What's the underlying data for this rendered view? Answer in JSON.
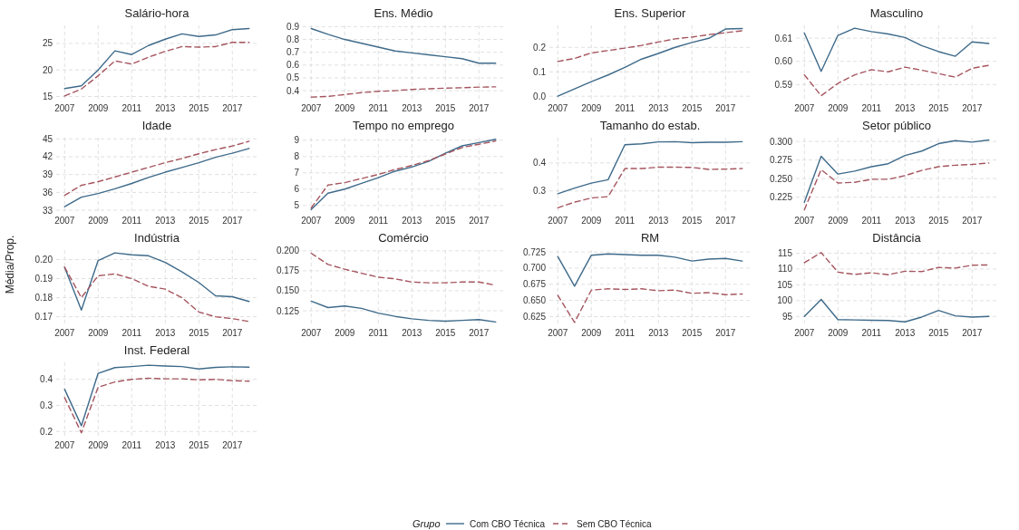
{
  "chart_data": [
    {
      "type": "line",
      "title": "Salário-hora",
      "legend": "bottom",
      "legend_title": "Grupo",
      "grid": true,
      "xlim": [
        2006.5,
        2018.5
      ],
      "xticks": [
        2007,
        2009,
        2011,
        2013,
        2015,
        2017
      ],
      "ylim": [
        14.4,
        28.4
      ],
      "yticks": [
        15,
        20,
        25
      ],
      "x": [
        2007,
        2008,
        2009,
        2010,
        2011,
        2012,
        2013,
        2014,
        2015,
        2016,
        2017,
        2018
      ],
      "series": [
        {
          "name": "Com CBO Técnica",
          "color": "#3e6a8a",
          "line_style": "solid",
          "values": [
            16.5,
            17.0,
            20.0,
            23.6,
            22.9,
            24.6,
            25.8,
            26.8,
            26.3,
            26.6,
            27.6,
            27.8
          ]
        },
        {
          "name": "Sem CBO Técnica",
          "color": "#a5555f",
          "line_style": "dashed",
          "values": [
            15.1,
            16.4,
            18.9,
            21.7,
            21.1,
            22.4,
            23.5,
            24.4,
            24.3,
            24.4,
            25.2,
            25.2
          ]
        }
      ]
    },
    {
      "type": "line",
      "title": "Ens. Médio",
      "grid": true,
      "xlim": [
        2006.5,
        2018.5
      ],
      "xticks": [
        2007,
        2009,
        2011,
        2013,
        2015,
        2017
      ],
      "ylim": [
        0.33,
        0.91
      ],
      "yticks": [
        0.4,
        0.5,
        0.6,
        0.7,
        0.8,
        0.9
      ],
      "x": [
        2007,
        2008,
        2009,
        2010,
        2011,
        2012,
        2013,
        2014,
        2015,
        2016,
        2017,
        2018
      ],
      "series": [
        {
          "color": "#3e6a8a",
          "line_style": "solid",
          "values": [
            0.885,
            0.84,
            0.8,
            0.77,
            0.74,
            0.71,
            0.695,
            0.68,
            0.665,
            0.65,
            0.615,
            0.615
          ]
        },
        {
          "color": "#a5555f",
          "line_style": "dashed",
          "values": [
            0.35,
            0.355,
            0.37,
            0.385,
            0.395,
            0.4,
            0.41,
            0.415,
            0.42,
            0.423,
            0.428,
            0.43
          ]
        }
      ]
    },
    {
      "type": "line",
      "title": "Ens. Superior",
      "grid": true,
      "xlim": [
        2006.5,
        2018.5
      ],
      "xticks": [
        2007,
        2009,
        2011,
        2013,
        2015,
        2017
      ],
      "ylim": [
        -0.014,
        0.29
      ],
      "yticks": [
        {
          "value": 0,
          "label": "0.0"
        },
        0.1,
        0.2
      ],
      "x": [
        2007,
        2008,
        2009,
        2010,
        2011,
        2012,
        2013,
        2014,
        2015,
        2016,
        2017,
        2018
      ],
      "series": [
        {
          "color": "#3e6a8a",
          "line_style": "solid",
          "values": [
            0.0,
            0.03,
            0.06,
            0.087,
            0.118,
            0.152,
            0.175,
            0.2,
            0.22,
            0.237,
            0.275,
            0.277
          ]
        },
        {
          "color": "#a5555f",
          "line_style": "dashed",
          "values": [
            0.142,
            0.155,
            0.177,
            0.187,
            0.197,
            0.208,
            0.222,
            0.235,
            0.242,
            0.252,
            0.26,
            0.268
          ]
        }
      ]
    },
    {
      "type": "line",
      "title": "Masculino",
      "grid": true,
      "xlim": [
        2006.5,
        2018.5
      ],
      "xticks": [
        2007,
        2009,
        2011,
        2013,
        2015,
        2017
      ],
      "ylim": [
        0.5835,
        0.6155
      ],
      "yticks": [
        0.59,
        {
          "value": 0.6,
          "label": "0.60"
        },
        0.61
      ],
      "x": [
        2007,
        2008,
        2009,
        2010,
        2011,
        2012,
        2013,
        2014,
        2015,
        2016,
        2017,
        2018
      ],
      "series": [
        {
          "color": "#3e6a8a",
          "line_style": "solid",
          "values": [
            0.6122,
            0.5957,
            0.6112,
            0.6143,
            0.6128,
            0.6118,
            0.6103,
            0.6068,
            0.6042,
            0.6022,
            0.6084,
            0.6077
          ]
        },
        {
          "color": "#a5555f",
          "line_style": "dashed",
          "values": [
            0.5942,
            0.5852,
            0.5905,
            0.5942,
            0.5964,
            0.5955,
            0.5975,
            0.5962,
            0.5947,
            0.5932,
            0.597,
            0.5983
          ]
        }
      ]
    },
    {
      "type": "line",
      "title": "Idade",
      "grid": true,
      "xlim": [
        2006.5,
        2018.5
      ],
      "xticks": [
        2007,
        2009,
        2011,
        2013,
        2015,
        2017
      ],
      "ylim": [
        32.7,
        45.2
      ],
      "yticks": [
        33,
        36,
        39,
        42,
        45
      ],
      "x": [
        2007,
        2008,
        2009,
        2010,
        2011,
        2012,
        2013,
        2014,
        2015,
        2016,
        2017,
        2018
      ],
      "series": [
        {
          "color": "#3e6a8a",
          "line_style": "solid",
          "values": [
            33.6,
            35.2,
            35.8,
            36.6,
            37.5,
            38.5,
            39.4,
            40.2,
            41.0,
            41.9,
            42.6,
            43.4
          ]
        },
        {
          "color": "#a5555f",
          "line_style": "dashed",
          "values": [
            35.5,
            37.2,
            37.8,
            38.6,
            39.4,
            40.2,
            41.0,
            41.7,
            42.5,
            43.2,
            43.8,
            44.6
          ]
        }
      ]
    },
    {
      "type": "line",
      "title": "Tempo no emprego",
      "grid": true,
      "xlim": [
        2006.5,
        2018.5
      ],
      "xticks": [
        2007,
        2009,
        2011,
        2013,
        2015,
        2017
      ],
      "ylim": [
        4.6,
        9.15
      ],
      "yticks": [
        5,
        6,
        7,
        8,
        9
      ],
      "x": [
        2007,
        2008,
        2009,
        2010,
        2011,
        2012,
        2013,
        2014,
        2015,
        2016,
        2017,
        2018
      ],
      "series": [
        {
          "color": "#3e6a8a",
          "line_style": "solid",
          "values": [
            4.75,
            5.75,
            6.0,
            6.35,
            6.7,
            7.1,
            7.35,
            7.7,
            8.2,
            8.65,
            8.85,
            9.05
          ]
        },
        {
          "color": "#a5555f",
          "line_style": "dashed",
          "values": [
            4.85,
            6.25,
            6.4,
            6.65,
            6.9,
            7.2,
            7.45,
            7.75,
            8.15,
            8.55,
            8.75,
            8.95
          ]
        }
      ]
    },
    {
      "type": "line",
      "title": "Tamanho do estab.",
      "grid": true,
      "xlim": [
        2006.5,
        2018.5
      ],
      "xticks": [
        2007,
        2009,
        2011,
        2013,
        2015,
        2017
      ],
      "ylim": [
        0.225,
        0.49
      ],
      "yticks": [
        0.3,
        0.4
      ],
      "x": [
        2007,
        2008,
        2009,
        2010,
        2011,
        2012,
        2013,
        2014,
        2015,
        2016,
        2017,
        2018
      ],
      "series": [
        {
          "color": "#3e6a8a",
          "line_style": "solid",
          "values": [
            0.29,
            0.31,
            0.328,
            0.34,
            0.465,
            0.468,
            0.475,
            0.476,
            0.472,
            0.474,
            0.474,
            0.476
          ]
        },
        {
          "color": "#a5555f",
          "line_style": "dashed",
          "values": [
            0.24,
            0.26,
            0.275,
            0.28,
            0.38,
            0.38,
            0.385,
            0.385,
            0.384,
            0.377,
            0.378,
            0.38
          ]
        }
      ]
    },
    {
      "type": "line",
      "title": "Setor público",
      "grid": true,
      "xlim": [
        2006.5,
        2018.5
      ],
      "xticks": [
        2007,
        2009,
        2011,
        2013,
        2015,
        2017
      ],
      "ylim": [
        0.205,
        0.305
      ],
      "yticks": [
        0.225,
        {
          "value": 0.25,
          "label": "0.250"
        },
        0.275,
        {
          "value": 0.3,
          "label": "0.300"
        }
      ],
      "x": [
        2007,
        2008,
        2009,
        2010,
        2011,
        2012,
        2013,
        2014,
        2015,
        2016,
        2017,
        2018
      ],
      "series": [
        {
          "color": "#3e6a8a",
          "line_style": "solid",
          "values": [
            0.218,
            0.28,
            0.256,
            0.26,
            0.266,
            0.27,
            0.281,
            0.287,
            0.297,
            0.301,
            0.299,
            0.302
          ]
        },
        {
          "color": "#a5555f",
          "line_style": "dashed",
          "values": [
            0.208,
            0.262,
            0.244,
            0.245,
            0.249,
            0.249,
            0.254,
            0.261,
            0.266,
            0.268,
            0.269,
            0.271
          ]
        }
      ]
    },
    {
      "type": "line",
      "title": "Indústria",
      "ylabel": "Média/Prop.",
      "grid": true,
      "xlim": [
        2006.5,
        2018.5
      ],
      "xticks": [
        2007,
        2009,
        2011,
        2013,
        2015,
        2017
      ],
      "ylim": [
        0.166,
        0.205
      ],
      "yticks": [
        0.17,
        0.18,
        0.19,
        {
          "value": 0.2,
          "label": "0.20"
        }
      ],
      "x": [
        2007,
        2008,
        2009,
        2010,
        2011,
        2012,
        2013,
        2014,
        2015,
        2016,
        2017,
        2018
      ],
      "series": [
        {
          "color": "#3e6a8a",
          "line_style": "solid",
          "values": [
            0.196,
            0.1735,
            0.1995,
            0.2035,
            0.2025,
            0.202,
            0.1985,
            0.1935,
            0.188,
            0.181,
            0.1805,
            0.178
          ]
        },
        {
          "color": "#a5555f",
          "line_style": "dashed",
          "values": [
            0.196,
            0.18,
            0.1915,
            0.1925,
            0.19,
            0.186,
            0.1845,
            0.18,
            0.1725,
            0.17,
            0.169,
            0.1675
          ]
        }
      ]
    },
    {
      "type": "line",
      "title": "Comércio",
      "grid": true,
      "xlim": [
        2006.5,
        2018.5
      ],
      "xticks": [
        2007,
        2009,
        2011,
        2013,
        2015,
        2017
      ],
      "ylim": [
        0.108,
        0.201
      ],
      "yticks": [
        0.125,
        {
          "value": 0.15,
          "label": "0.150"
        },
        0.175,
        {
          "value": 0.2,
          "label": "0.200"
        }
      ],
      "x": [
        2007,
        2008,
        2009,
        2010,
        2011,
        2012,
        2013,
        2014,
        2015,
        2016,
        2017,
        2018
      ],
      "series": [
        {
          "color": "#3e6a8a",
          "line_style": "solid",
          "values": [
            0.137,
            0.129,
            0.131,
            0.128,
            0.122,
            0.118,
            0.115,
            0.113,
            0.112,
            0.113,
            0.114,
            0.111
          ]
        },
        {
          "color": "#a5555f",
          "line_style": "dashed",
          "values": [
            0.197,
            0.183,
            0.177,
            0.172,
            0.167,
            0.165,
            0.161,
            0.16,
            0.16,
            0.161,
            0.161,
            0.157
          ]
        }
      ]
    },
    {
      "type": "line",
      "title": "RM",
      "grid": true,
      "xlim": [
        2006.5,
        2018.5
      ],
      "xticks": [
        2007,
        2009,
        2011,
        2013,
        2015,
        2017
      ],
      "ylim": [
        0.613,
        0.728
      ],
      "yticks": [
        0.625,
        {
          "value": 0.65,
          "label": "0.650"
        },
        0.675,
        {
          "value": 0.7,
          "label": "0.700"
        },
        0.725
      ],
      "x": [
        2007,
        2008,
        2009,
        2010,
        2011,
        2012,
        2013,
        2014,
        2015,
        2016,
        2017,
        2018
      ],
      "series": [
        {
          "color": "#3e6a8a",
          "line_style": "solid",
          "values": [
            0.718,
            0.672,
            0.72,
            0.722,
            0.721,
            0.72,
            0.72,
            0.717,
            0.711,
            0.714,
            0.715,
            0.711
          ]
        },
        {
          "color": "#a5555f",
          "line_style": "dashed",
          "values": [
            0.658,
            0.616,
            0.666,
            0.668,
            0.667,
            0.668,
            0.665,
            0.666,
            0.661,
            0.662,
            0.659,
            0.66
          ]
        }
      ]
    },
    {
      "type": "line",
      "title": "Distância",
      "grid": true,
      "xlim": [
        2006.5,
        2018.5
      ],
      "xticks": [
        2007,
        2009,
        2011,
        2013,
        2015,
        2017
      ],
      "ylim": [
        92.5,
        116
      ],
      "yticks": [
        95,
        100,
        105,
        110,
        115
      ],
      "x": [
        2007,
        2008,
        2009,
        2010,
        2011,
        2012,
        2013,
        2014,
        2015,
        2016,
        2017,
        2018
      ],
      "series": [
        {
          "color": "#3e6a8a",
          "line_style": "solid",
          "values": [
            95,
            100.4,
            94,
            93.9,
            93.8,
            93.7,
            93.3,
            94.8,
            96.9,
            95.2,
            94.8,
            95.0
          ]
        },
        {
          "color": "#a5555f",
          "line_style": "dashed",
          "values": [
            112,
            115.2,
            109,
            108.3,
            108.8,
            108.2,
            109.3,
            109.2,
            110.5,
            110.3,
            111.2,
            111.3
          ]
        }
      ]
    },
    {
      "type": "line",
      "title": "Inst. Federal",
      "grid": true,
      "xlim": [
        2006.5,
        2018.5
      ],
      "xticks": [
        2007,
        2009,
        2011,
        2013,
        2015,
        2017
      ],
      "ylim": [
        0.18,
        0.465
      ],
      "yticks": [
        0.2,
        0.3,
        0.4
      ],
      "x": [
        2007,
        2008,
        2009,
        2010,
        2011,
        2012,
        2013,
        2014,
        2015,
        2016,
        2017,
        2018
      ],
      "series": [
        {
          "color": "#3e6a8a",
          "line_style": "solid",
          "values": [
            0.362,
            0.222,
            0.423,
            0.445,
            0.449,
            0.454,
            0.451,
            0.449,
            0.44,
            0.446,
            0.448,
            0.447
          ]
        },
        {
          "color": "#a5555f",
          "line_style": "dashed",
          "values": [
            0.33,
            0.195,
            0.37,
            0.39,
            0.4,
            0.404,
            0.402,
            0.402,
            0.398,
            0.4,
            0.395,
            0.393
          ]
        }
      ]
    }
  ]
}
